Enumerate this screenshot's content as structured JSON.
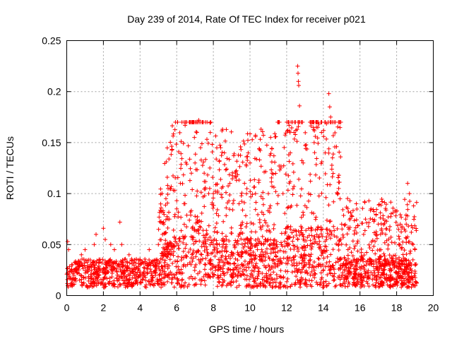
{
  "chart_data": {
    "type": "scatter",
    "title": "Day 239 of 2014, Rate Of TEC Index for receiver p021",
    "xlabel": "GPS time / hours",
    "ylabel": "ROTI / TECUs",
    "xlim": [
      0,
      20
    ],
    "ylim": [
      0,
      0.25
    ],
    "xticks": [
      0,
      2,
      4,
      6,
      8,
      10,
      12,
      14,
      16,
      18,
      20
    ],
    "yticks": [
      0,
      0.05,
      0.1,
      0.15,
      0.2,
      0.25
    ],
    "xtick_labels": [
      "0",
      "2",
      "4",
      "6",
      "8",
      "10",
      "12",
      "14",
      "16",
      "18",
      "20"
    ],
    "ytick_labels": [
      "0",
      "0.05",
      "0.1",
      "0.15",
      "0.2",
      "0.25"
    ],
    "grid": true,
    "marker": "+",
    "color": "#ff0000",
    "data_range_hours": [
      0,
      19.1
    ],
    "series": [
      {
        "name": "ROTI",
        "points": [
          [
            0.05,
            0.053
          ],
          [
            0.1,
            0.045
          ],
          [
            0.3,
            0.03
          ],
          [
            0.8,
            0.04
          ],
          [
            1.0,
            0.045
          ],
          [
            1.2,
            0.035
          ],
          [
            1.5,
            0.05
          ],
          [
            1.6,
            0.06
          ],
          [
            2.0,
            0.066
          ],
          [
            2.1,
            0.055
          ],
          [
            2.4,
            0.05
          ],
          [
            2.6,
            0.045
          ],
          [
            2.9,
            0.072
          ],
          [
            3.0,
            0.05
          ],
          [
            3.4,
            0.04
          ],
          [
            4.0,
            0.035
          ],
          [
            4.5,
            0.045
          ],
          [
            5.0,
            0.05
          ],
          [
            5.3,
            0.07
          ],
          [
            5.6,
            0.075
          ],
          [
            6.0,
            0.085
          ],
          [
            6.2,
            0.11
          ],
          [
            6.4,
            0.09
          ],
          [
            6.8,
            0.12
          ],
          [
            7.0,
            0.13
          ],
          [
            7.1,
            0.16
          ],
          [
            7.2,
            0.172
          ],
          [
            7.3,
            0.145
          ],
          [
            7.5,
            0.12
          ],
          [
            7.8,
            0.105
          ],
          [
            8.0,
            0.1
          ],
          [
            8.4,
            0.145
          ],
          [
            8.5,
            0.163
          ],
          [
            8.6,
            0.14
          ],
          [
            8.9,
            0.11
          ],
          [
            9.2,
            0.12
          ],
          [
            9.4,
            0.09
          ],
          [
            9.7,
            0.11
          ],
          [
            9.9,
            0.14
          ],
          [
            10.0,
            0.13
          ],
          [
            10.3,
            0.1
          ],
          [
            10.5,
            0.144
          ],
          [
            10.7,
            0.095
          ],
          [
            11.0,
            0.1
          ],
          [
            11.2,
            0.12
          ],
          [
            11.5,
            0.09
          ],
          [
            11.8,
            0.1
          ],
          [
            12.2,
            0.14
          ],
          [
            12.4,
            0.16
          ],
          [
            12.5,
            0.162
          ],
          [
            12.6,
            0.225
          ],
          [
            12.62,
            0.218
          ],
          [
            12.64,
            0.21
          ],
          [
            12.66,
            0.206
          ],
          [
            12.7,
            0.186
          ],
          [
            12.9,
            0.13
          ],
          [
            13.2,
            0.1
          ],
          [
            13.5,
            0.15
          ],
          [
            13.7,
            0.165
          ],
          [
            13.9,
            0.16
          ],
          [
            14.1,
            0.14
          ],
          [
            14.3,
            0.198
          ],
          [
            14.35,
            0.185
          ],
          [
            14.4,
            0.175
          ],
          [
            14.5,
            0.135
          ],
          [
            14.8,
            0.1
          ],
          [
            15.0,
            0.07
          ],
          [
            15.4,
            0.065
          ],
          [
            15.8,
            0.09
          ],
          [
            16.2,
            0.06
          ],
          [
            16.6,
            0.085
          ],
          [
            17.0,
            0.07
          ],
          [
            17.4,
            0.06
          ],
          [
            17.9,
            0.083
          ],
          [
            18.2,
            0.07
          ],
          [
            18.5,
            0.075
          ],
          [
            18.6,
            0.11
          ],
          [
            18.7,
            0.1
          ],
          [
            18.9,
            0.05
          ],
          [
            19.0,
            0.045
          ]
        ]
      }
    ]
  }
}
